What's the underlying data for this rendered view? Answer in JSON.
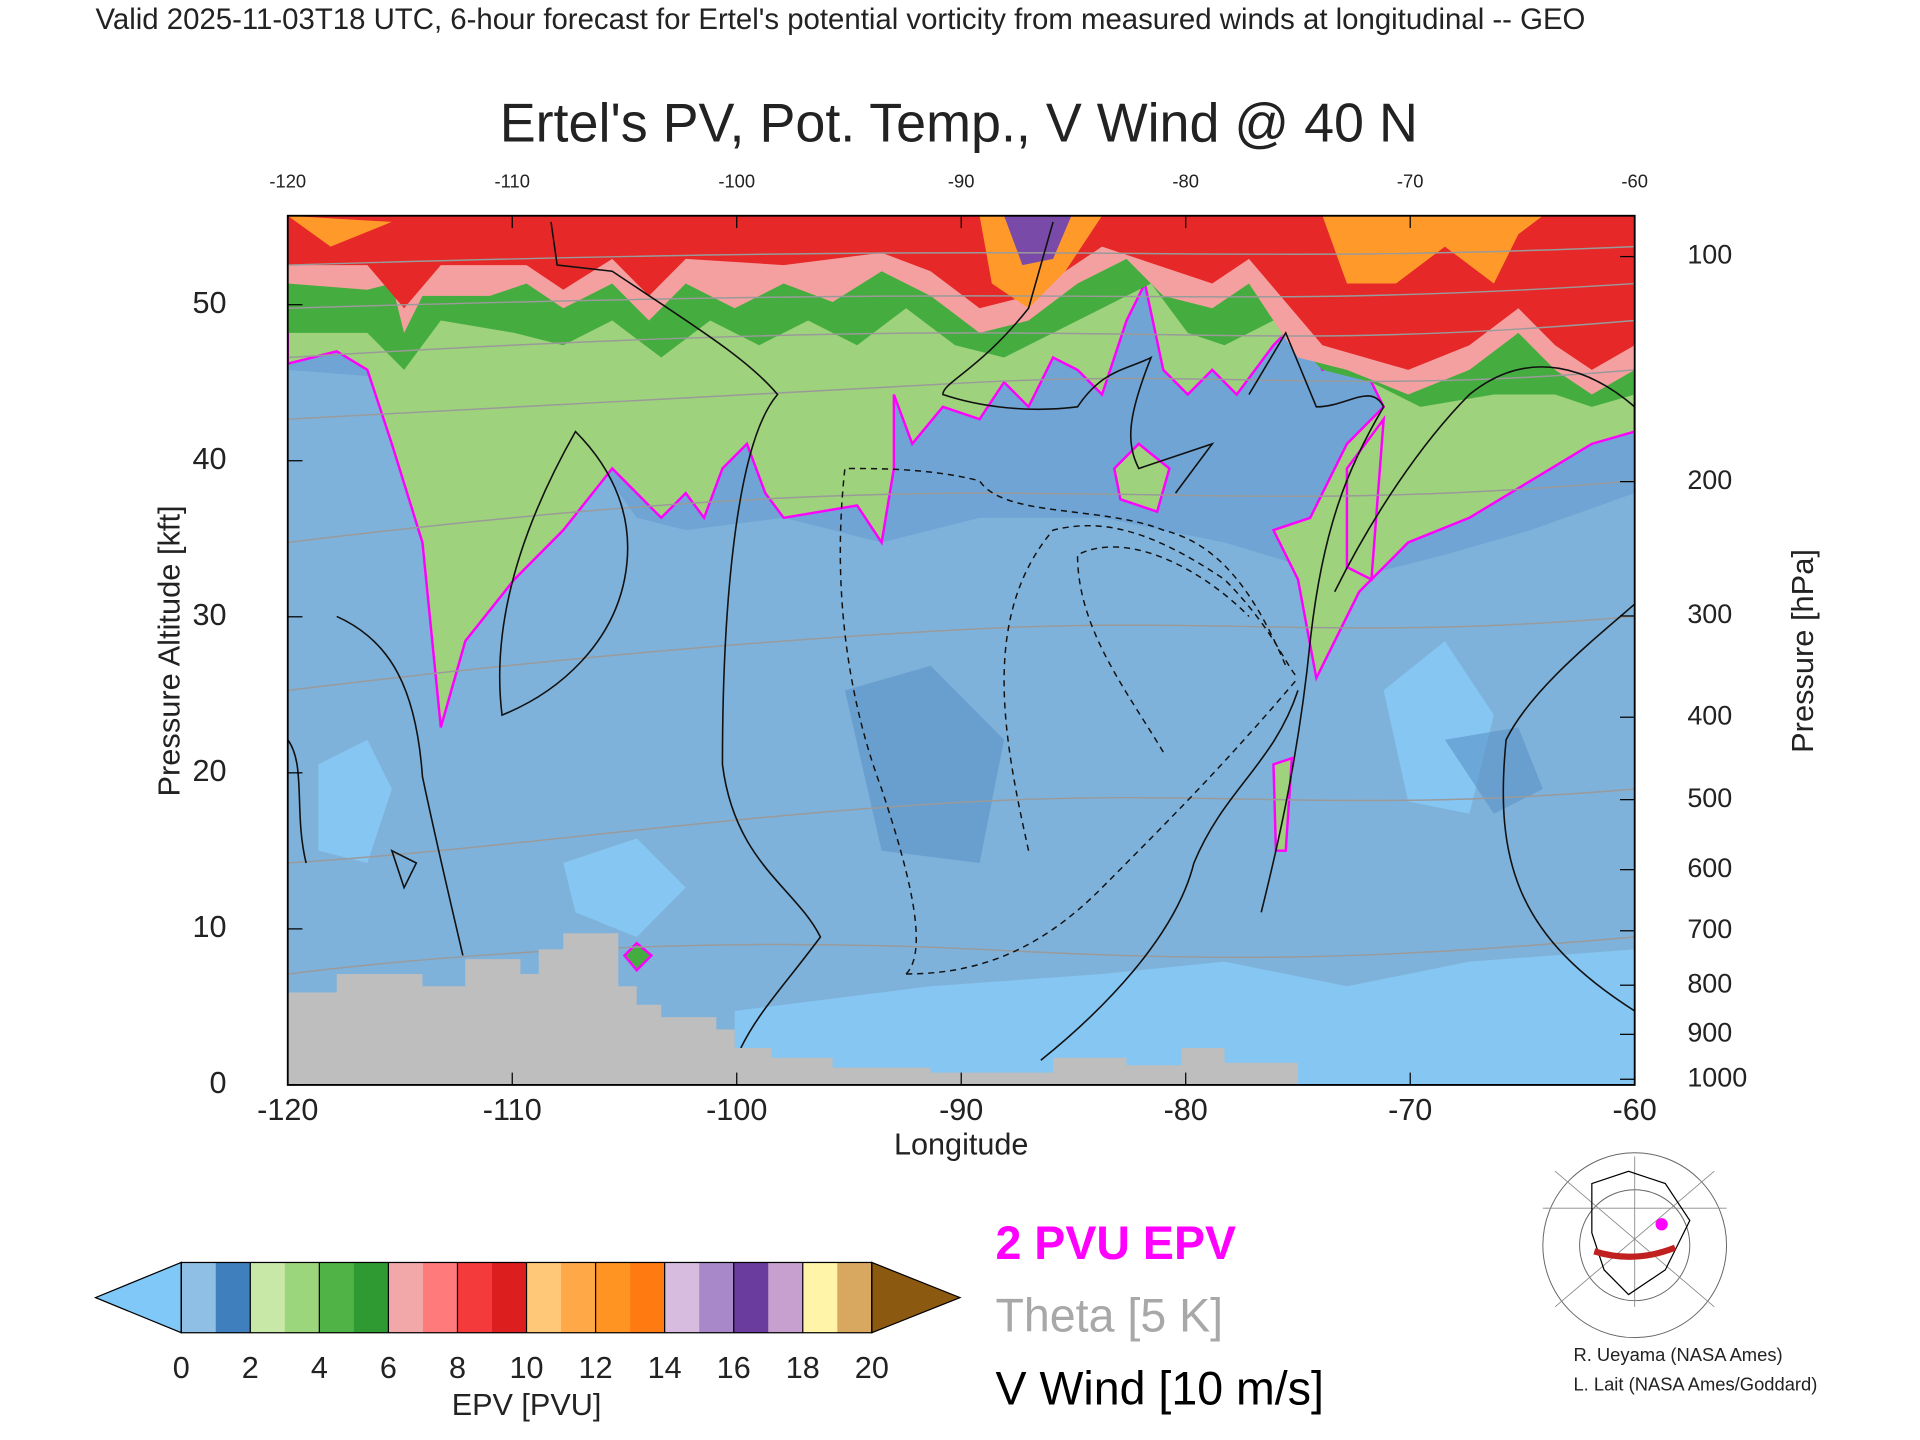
{
  "header": "Valid 2025-11-03T18 UTC, 6-hour forecast for Ertel's potential vorticity from measured winds at longitudinal -- GEO",
  "chart_data": {
    "type": "contour",
    "title": "Ertel's PV, Pot. Temp., V Wind @ 40 N",
    "x_label": "Longitude",
    "y_label": "Pressure Altitude [kft]",
    "y2_label": "Pressure [hPa]",
    "xlim": [
      -120,
      -60
    ],
    "xticks": [
      -120,
      -110,
      -100,
      -90,
      -80,
      -70,
      -60
    ],
    "ylim": [
      0,
      55.7
    ],
    "yticks": [
      0,
      10,
      20,
      30,
      40,
      50
    ],
    "y2ticks": [
      100,
      200,
      300,
      400,
      500,
      600,
      700,
      800,
      900,
      1000
    ],
    "y2scale": "pressure-altitude",
    "colorbar": {
      "label": "EPV [PVU]",
      "lim": [
        0,
        20
      ],
      "ticks": [
        0,
        2,
        4,
        6,
        8,
        10,
        12,
        14,
        16,
        18,
        20
      ],
      "colors": [
        "#8fbfe4",
        "#3f7fbd",
        "#c8e8a8",
        "#9cd67c",
        "#4fb345",
        "#2f9a32",
        "#f2a8a8",
        "#ff7a7a",
        "#f43a3a",
        "#dc1e1e",
        "#ffc878",
        "#ffa848",
        "#ff9422",
        "#ff7a10",
        "#d8bce0",
        "#a888c8",
        "#6a3c9e",
        "#c8a0d0",
        "#fff4a8",
        "#d8a860"
      ],
      "under_color": "#80c8f8",
      "over_color": "#8b5a10"
    },
    "legend": [
      {
        "text": "2 PVU EPV",
        "color": "#ff00ff"
      },
      {
        "text": "Theta [5 K]",
        "color": "#a8a8a8"
      },
      {
        "text": "V Wind [10 m/s]",
        "color": "#000000"
      }
    ]
  },
  "credits": [
    "R. Ueyama (NASA Ames)",
    "L. Lait (NASA Ames/Goddard)"
  ]
}
